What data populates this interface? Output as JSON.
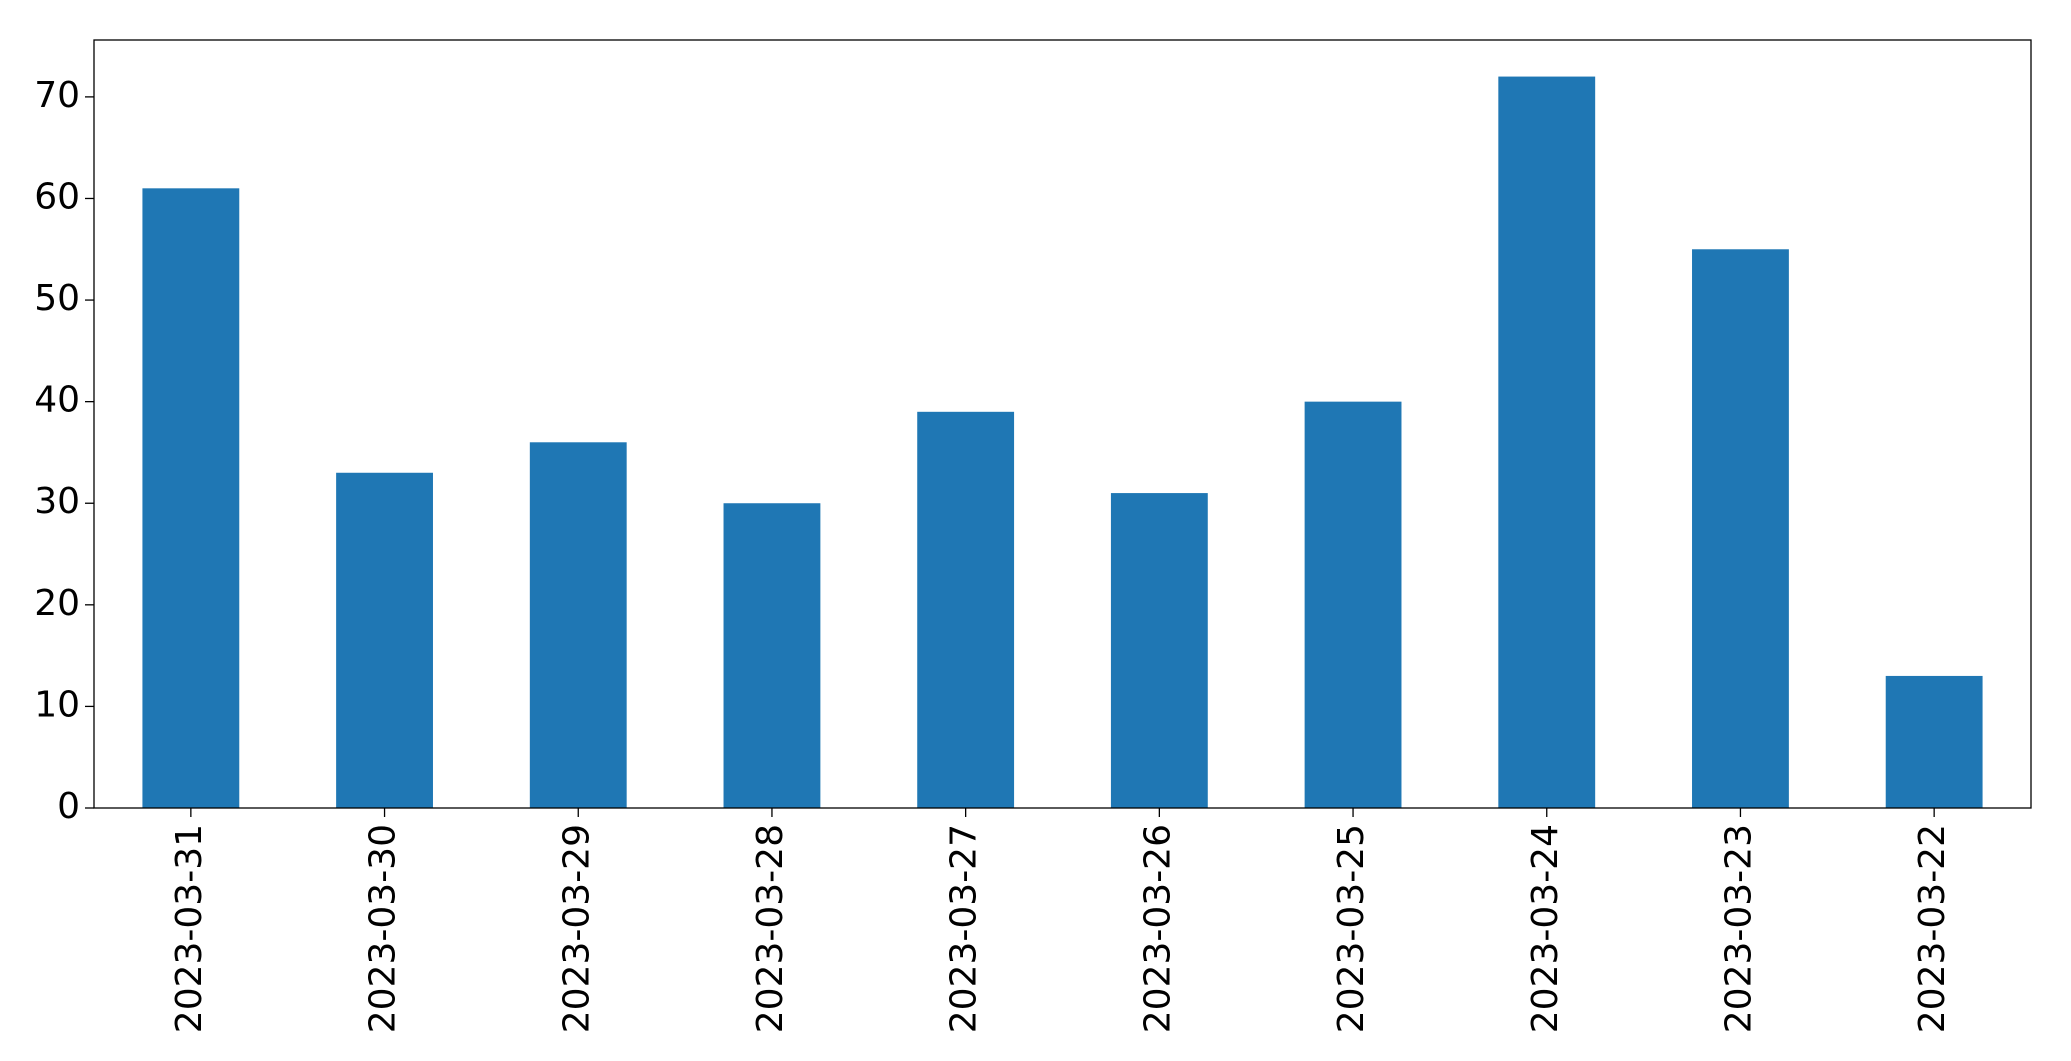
{
  "chart_data": {
    "type": "bar",
    "categories": [
      "2023-03-31",
      "2023-03-30",
      "2023-03-29",
      "2023-03-28",
      "2023-03-27",
      "2023-03-26",
      "2023-03-25",
      "2023-03-24",
      "2023-03-23",
      "2023-03-22"
    ],
    "values": [
      61,
      33,
      36,
      30,
      39,
      31,
      40,
      72,
      55,
      13
    ],
    "color": "#1f77b4",
    "ylim": [
      0,
      75.6
    ],
    "yticks": [
      0,
      10,
      20,
      30,
      40,
      50,
      60,
      70
    ],
    "grid": false
  }
}
